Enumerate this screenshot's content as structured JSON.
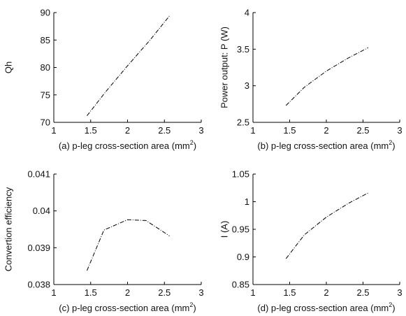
{
  "chart_data": [
    {
      "type": "line",
      "title": "",
      "xlabel": "(a) p-leg cross-section area (mm",
      "xlabel_sup": "2",
      "xlabel_end": ")",
      "ylabel": "Qh",
      "xlim": [
        1,
        3
      ],
      "ylim": [
        70,
        90
      ],
      "xticks": [
        "1",
        "1.5",
        "2",
        "2.5",
        "3"
      ],
      "yticks": [
        "70",
        "75",
        "80",
        "85",
        "90"
      ],
      "series": [
        {
          "x": [
            1.45,
            1.7,
            2.0,
            2.3,
            2.57
          ],
          "y": [
            71.2,
            75.5,
            80.3,
            84.9,
            89.4
          ]
        }
      ]
    },
    {
      "type": "line",
      "title": "",
      "xlabel": "(b) p-leg cross-section area (mm",
      "xlabel_sup": "2",
      "xlabel_end": ")",
      "ylabel": "Power output: P (W)",
      "xlim": [
        1,
        3
      ],
      "ylim": [
        2.5,
        4
      ],
      "xticks": [
        "1",
        "1.5",
        "2",
        "2.5",
        "3"
      ],
      "yticks": [
        "2.5",
        "3",
        "3.5",
        "4"
      ],
      "series": [
        {
          "x": [
            1.45,
            1.7,
            2.0,
            2.3,
            2.57
          ],
          "y": [
            2.73,
            2.98,
            3.2,
            3.38,
            3.52
          ]
        }
      ]
    },
    {
      "type": "line",
      "title": "",
      "xlabel": "(c) p-leg cross-section area (mm",
      "xlabel_sup": "2",
      "xlabel_end": ")",
      "ylabel": "Convertion efficiency",
      "xlim": [
        1,
        3
      ],
      "ylim": [
        0.038,
        0.041
      ],
      "xticks": [
        "1",
        "1.5",
        "2",
        "2.5",
        "3"
      ],
      "yticks": [
        "0.038",
        "0.039",
        "0.04",
        "0.041"
      ],
      "series": [
        {
          "x": [
            1.45,
            1.68,
            2.0,
            2.25,
            2.57
          ],
          "y": [
            0.03838,
            0.03948,
            0.03976,
            0.03974,
            0.03932
          ]
        }
      ]
    },
    {
      "type": "line",
      "title": "",
      "xlabel": "(d) p-leg cross-section area (mm",
      "xlabel_sup": "2",
      "xlabel_end": ")",
      "ylabel": "I (A)",
      "xlim": [
        1,
        3
      ],
      "ylim": [
        0.85,
        1.05
      ],
      "xticks": [
        "1",
        "1.5",
        "2",
        "2.5",
        "3"
      ],
      "yticks": [
        "0.85",
        "0.9",
        "0.95",
        "1",
        "1.05"
      ],
      "series": [
        {
          "x": [
            1.45,
            1.7,
            2.0,
            2.3,
            2.57
          ],
          "y": [
            0.897,
            0.94,
            0.972,
            0.997,
            1.016
          ]
        }
      ]
    }
  ]
}
